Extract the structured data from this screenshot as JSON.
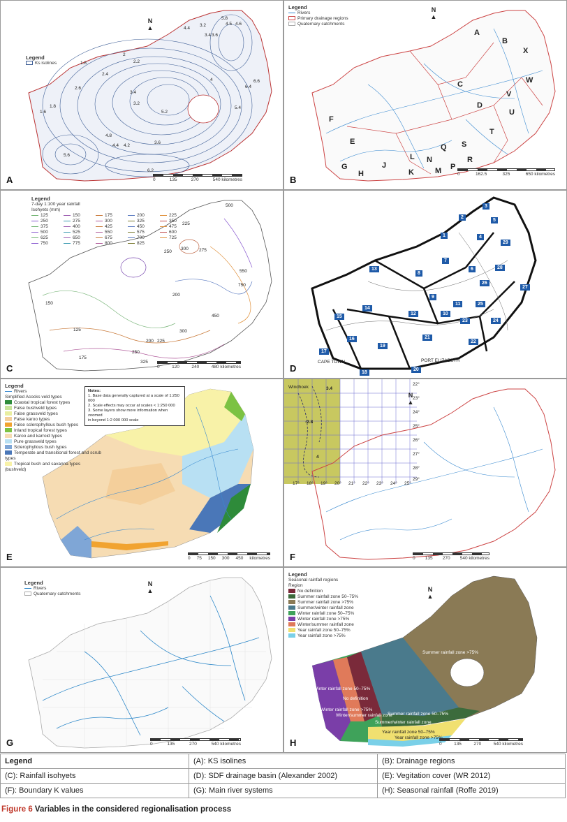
{
  "panels": {
    "a": {
      "letter": "A",
      "legend_title": "Legend",
      "legend_item": "Ks isolines",
      "north": "N",
      "scale_labels": [
        "0",
        "135",
        "270",
        "540 kilometres"
      ],
      "iso_labels": [
        "4.4",
        "3.2",
        "3.4",
        "3.6",
        "5.8",
        "4.5",
        "4.6",
        "1.8",
        "2",
        "2.2",
        "2.4",
        "2.6",
        "1.6",
        "1.8",
        "3.4",
        "3.2",
        "4.8",
        "5.2",
        "3.6",
        "4",
        "5.4",
        "6.4",
        "6.6",
        "4.2",
        "4.4",
        "5.6",
        "6.2"
      ]
    },
    "b": {
      "letter": "B",
      "legend_title": "Legend",
      "legend_items": [
        "Rivers",
        "Primary drainage regions",
        "Quaternary catchments"
      ],
      "north": "N",
      "regions": [
        "A",
        "B",
        "X",
        "W",
        "C",
        "V",
        "D",
        "U",
        "T",
        "F",
        "E",
        "S",
        "Q",
        "R",
        "G",
        "H",
        "J",
        "L",
        "K",
        "N",
        "M",
        "P"
      ],
      "scale_labels": [
        "0",
        "162.5",
        "325",
        "650 kilometres"
      ]
    },
    "c": {
      "letter": "C",
      "legend_title": "Legend",
      "legend_sub": "7-day 1:100 year rainfall",
      "legend_sub2": "Isohyets (mm)",
      "isohyets": [
        "125",
        "150",
        "175",
        "200",
        "225",
        "250",
        "275",
        "300",
        "325",
        "350",
        "375",
        "400",
        "425",
        "450",
        "475",
        "500",
        "525",
        "550",
        "575",
        "600",
        "625",
        "650",
        "675",
        "700",
        "725",
        "750",
        "775",
        "800",
        "825"
      ],
      "map_labels": [
        "500",
        "225",
        "250",
        "300",
        "275",
        "200",
        "150",
        "125",
        "175",
        "250",
        "325",
        "200",
        "225",
        "450",
        "550",
        "750",
        "300"
      ],
      "scale_labels": [
        "0",
        "120",
        "240",
        "480 kilometres"
      ]
    },
    "d": {
      "letter": "D",
      "basins": [
        "3",
        "2",
        "5",
        "1",
        "4",
        "29",
        "13",
        "8",
        "7",
        "28",
        "6",
        "26",
        "27",
        "9",
        "14",
        "15",
        "11",
        "25",
        "10",
        "12",
        "23",
        "24",
        "16",
        "21",
        "19",
        "22",
        "17",
        "20",
        "18"
      ],
      "places": [
        "CAPE TOWN",
        "PORT ELIZABETH"
      ]
    },
    "e": {
      "letter": "E",
      "legend_title": "Legend",
      "legend_rivers": "Rivers",
      "legend_sub": "Simplified Acocks veld types",
      "veld_types": [
        {
          "label": "Coastal tropical forest types",
          "color": "#2e8b3a"
        },
        {
          "label": "False bushveld types",
          "color": "#c8e49a"
        },
        {
          "label": "False grassveld types",
          "color": "#e9eea0"
        },
        {
          "label": "False karoo types",
          "color": "#f4cf9b"
        },
        {
          "label": "False sclerophyllous bush types",
          "color": "#f1a330"
        },
        {
          "label": "Inland tropical forest types",
          "color": "#7cc243"
        },
        {
          "label": "Karoo and karroid types",
          "color": "#f6dcb3"
        },
        {
          "label": "Pure grassveld types",
          "color": "#b8e0f3"
        },
        {
          "label": "Sclerophyllous bush types",
          "color": "#7fa6d6"
        },
        {
          "label": "Temperate and transitional forest and scrub types",
          "color": "#4a77b8"
        },
        {
          "label": "Tropical bush and savanna types (bushveld)",
          "color": "#f8f2a8"
        }
      ],
      "notes": [
        "Notes:",
        "1. Base data generally captured at a scale of 1:250 000",
        "2. Scale effects may occur at scales < 1:250 000",
        "3. Some layers show more information when zoomed",
        "in beyond 1:2 000 000 scale"
      ],
      "scale_labels": [
        "0",
        "75",
        "150",
        "300",
        "450",
        "kilometres"
      ]
    },
    "f": {
      "letter": "F",
      "north": "N",
      "lat_labels": [
        "22°",
        "23°",
        "24°",
        "25°",
        "26°",
        "27°",
        "28°",
        "29°"
      ],
      "lon_labels": [
        "17°",
        "18°",
        "19°",
        "20°",
        "21°",
        "22°",
        "23°",
        "24°",
        "25°"
      ],
      "inset_labels": [
        "Windhoek",
        "3.4",
        "-2.8",
        "4"
      ],
      "scale_labels": [
        "0",
        "135",
        "270",
        "540 kilometres"
      ]
    },
    "g": {
      "letter": "G",
      "legend_title": "Legend",
      "legend_items": [
        "Rivers",
        "Quaternary catchments"
      ],
      "north": "N",
      "scale_labels": [
        "0",
        "135",
        "270",
        "540 kilometres"
      ]
    },
    "h": {
      "letter": "H",
      "legend_title": "Legend",
      "legend_sub": "Seasonal rainfall regions",
      "legend_sub2": "Region",
      "regions": [
        {
          "label": "No definition",
          "color": "#7a2a3a"
        },
        {
          "label": "Summer rainfall zone 50–75%",
          "color": "#3c6b3c"
        },
        {
          "label": "Summer rainfall zone >75%",
          "color": "#8a7a55"
        },
        {
          "label": "Summer/winter rainfall zone",
          "color": "#4a7a8c"
        },
        {
          "label": "Winter rainfall zone 50–75%",
          "color": "#3fa25a"
        },
        {
          "label": "Winter rainfall zone >75%",
          "color": "#7a3ea8"
        },
        {
          "label": "Winter/summer rainfall zone",
          "color": "#e07a5a"
        },
        {
          "label": "Year rainfall zone 50–75%",
          "color": "#f0e070"
        },
        {
          "label": "Year rainfall zone >75%",
          "color": "#7ad0e8"
        }
      ],
      "map_labels": [
        "Summer rainfall zone >75%",
        "Winter rainfall zone 50–75%",
        "No definition",
        "Winter rainfall zone >75%",
        "Winter/summer rainfall zone",
        "Summer rainfall zone 50–75%",
        "Summer/winter rainfall zone",
        "Year rainfall zone 50–75%",
        "Year rainfall zone >75%"
      ],
      "north": "N",
      "scale_labels": [
        "0",
        "135",
        "270",
        "540 kilometres"
      ]
    }
  },
  "legend_table": {
    "header": "Legend",
    "cells": [
      [
        "Legend",
        "(A): KS isolines",
        "(B): Drainage regions"
      ],
      [
        "(C): Rainfall isohyets",
        "(D): SDF drainage basin (Alexander 2002)",
        "(E): Vegitation cover (WR 2012)"
      ],
      [
        "(F): Boundary K values",
        "(G): Main river systems",
        "(H): Seasonal rainfall (Roffe 2019)"
      ]
    ]
  },
  "caption": {
    "figure": "Figure 6",
    "text": " Variables in the considered regionalisation process"
  }
}
